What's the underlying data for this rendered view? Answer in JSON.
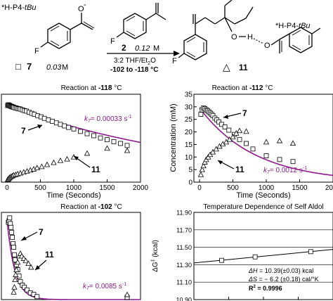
{
  "scheme": {
    "enolate_base": "*H-P4-",
    "enolate_base_tbu": "tBu",
    "enolate_minus": "-",
    "enolate_F": "F",
    "enolate_number": "7",
    "enolate_conc": "0.03",
    "enolate_conc_unit": "M",
    "ketone_F": "F",
    "ketone_number": "2",
    "ketone_conc": "0.12",
    "ketone_conc_unit": "M",
    "solvent_ratio": "3:2 THF/Et",
    "solvent_sub": "2",
    "solvent_tail": "O",
    "temp_range": "-102 to -118 °C",
    "product_base": "*H-P4-",
    "product_base_tbu": "tBu",
    "product_O1": "O",
    "product_H": "H",
    "product_O2": "O",
    "product_F": "F",
    "product_number": "11",
    "product_triangle": "△",
    "enolate_square": "□"
  },
  "chart_data": [
    {
      "type": "scatter",
      "title_prefix": "Reaction at ",
      "title_temp": "-118",
      "title_unit": " °C",
      "xlabel": "Time (Seconds)",
      "x_ticks": [
        "0",
        "500",
        "1000",
        "1500",
        "2000"
      ],
      "xlim": [
        0,
        2000
      ],
      "ylim": [
        0,
        35
      ],
      "k_label": "k",
      "k_sub": "7",
      "k_value": "= 0.00033 s",
      "k_exp": "-1",
      "label_7": "7",
      "label_11": "11",
      "series": [
        {
          "marker": "square",
          "x": [
            10,
            20,
            30,
            40,
            50,
            60,
            70,
            80,
            90,
            100,
            120,
            140,
            160,
            180,
            200,
            230,
            260,
            290,
            330,
            370,
            410,
            460,
            510,
            560,
            620,
            680,
            740,
            800,
            860,
            920,
            1000,
            1100,
            1200,
            1300,
            1400,
            1500,
            1600,
            1700,
            1800
          ],
          "y": [
            30.5,
            30.8,
            30.6,
            30.5,
            30.3,
            30.2,
            30.1,
            30,
            29.9,
            29.8,
            29.6,
            29.5,
            29.3,
            29.2,
            29.1,
            28.8,
            28.5,
            28.3,
            27.8,
            27.4,
            27,
            26.4,
            26,
            25.4,
            24.8,
            24.2,
            23.6,
            23,
            22.4,
            21.8,
            21.2,
            20.2,
            19.3,
            18.5,
            17.6,
            16.9,
            16.1,
            15.4,
            14.6
          ]
        },
        {
          "marker": "triangle",
          "x": [
            10,
            20,
            30,
            40,
            60,
            80,
            100,
            130,
            160,
            200,
            250,
            300,
            350,
            400,
            450,
            520,
            600,
            700,
            800,
            900,
            1000,
            1200,
            1500,
            1800
          ],
          "y": [
            1,
            1.3,
            1.6,
            1.9,
            2.2,
            2.5,
            2.8,
            3,
            3.3,
            3.6,
            4,
            4.4,
            4.8,
            5.2,
            5.7,
            6.2,
            7,
            7.8,
            8.6,
            9.2,
            10,
            11.5,
            13.5,
            12.6
          ]
        },
        {
          "marker": "fit",
          "k": 0.00033,
          "c0": 30.6
        }
      ]
    },
    {
      "type": "scatter",
      "title_prefix": "Reaction at ",
      "title_temp": "-112",
      "title_unit": " °C",
      "xlabel": "Time (Seconds)",
      "ylabel": "Concentration (mM)",
      "x_ticks": [
        "0",
        "500",
        "1000",
        "1500",
        "2000"
      ],
      "y_ticks": [
        "0",
        "5",
        "10",
        "15",
        "20",
        "25",
        "30",
        "35"
      ],
      "xlim": [
        0,
        2000
      ],
      "ylim": [
        0,
        35
      ],
      "k_label": "k",
      "k_sub": "7",
      "k_value": "= 0.0012 s",
      "k_exp": "-1",
      "label_7": "7",
      "label_11": "11",
      "series": [
        {
          "marker": "square",
          "x": [
            20,
            40,
            60,
            80,
            100,
            120,
            140,
            160,
            180,
            200,
            230,
            260,
            290,
            330,
            380,
            440,
            520,
            600,
            700,
            800,
            1000,
            1200,
            1400
          ],
          "y": [
            27,
            28.8,
            29.5,
            29.3,
            28.8,
            28.5,
            28,
            27.5,
            27,
            26.5,
            25.5,
            24.8,
            24,
            23,
            22,
            20.7,
            19,
            17,
            15.4,
            13.2,
            10.5,
            9,
            8.2
          ]
        },
        {
          "marker": "triangle",
          "x": [
            20,
            40,
            60,
            80,
            100,
            130,
            160,
            200,
            250,
            300,
            350,
            400,
            450,
            500,
            550,
            600,
            700,
            1000,
            1200,
            1400
          ],
          "y": [
            3,
            5,
            6.5,
            8,
            9,
            10,
            11,
            12,
            13.2,
            14.3,
            15.2,
            16,
            17,
            18,
            19.5,
            20.5,
            20.2,
            16,
            16.5,
            15.5
          ]
        },
        {
          "marker": "fit",
          "k": 0.0012,
          "c0": 29.6
        }
      ]
    },
    {
      "type": "scatter",
      "title_prefix": "Reaction at ",
      "title_temp": "-102",
      "title_unit": " °C",
      "xlabel": "",
      "x_ticks": [],
      "xlim": [
        0,
        2000
      ],
      "ylim": [
        0,
        35
      ],
      "k_label": "k",
      "k_sub": "7",
      "k_value": "= 0.0085 s",
      "k_exp": "-1",
      "label_7": "7",
      "label_11": "11",
      "series": [
        {
          "marker": "square",
          "x": [
            20,
            30,
            40,
            50,
            60,
            70,
            80,
            90,
            100,
            110,
            120,
            140,
            160,
            180,
            200,
            230,
            260,
            300,
            350,
            400,
            450,
            1800
          ],
          "y": [
            31,
            31.6,
            32.8,
            30.5,
            29,
            27,
            25,
            22.5,
            21,
            18,
            16,
            14,
            12,
            9.5,
            7.2,
            5.8,
            5,
            3.9,
            2.7,
            2.1,
            1.2,
            0.9
          ]
        },
        {
          "marker": "triangle",
          "x": [
            100,
            110,
            120,
            130,
            140,
            160,
            180,
            200,
            220,
            250,
            280,
            320,
            360,
            1800
          ],
          "y": [
            3,
            5,
            8,
            10,
            12,
            15,
            17.5,
            18.5,
            17.5,
            16.5,
            15.6,
            14.5,
            13,
            2
          ]
        },
        {
          "marker": "fit",
          "k": 0.0085,
          "c0": 32
        }
      ]
    },
    {
      "type": "line",
      "title": "Temperature Dependence of Self Aldol",
      "ylabel_prefix": "ΔG",
      "ylabel_suffix": " (kcal)",
      "y_ticks": [
        "10.90",
        "11.10",
        "11.30",
        "11.50",
        "11.70",
        "11.90"
      ],
      "ylim": [
        10.9,
        11.9
      ],
      "x_points": [
        155,
        161,
        171
      ],
      "xlim": [
        150,
        175
      ],
      "series": [
        {
          "marker": "square",
          "x": [
            155,
            161,
            171
          ],
          "y": [
            11.35,
            11.39,
            11.45
          ]
        }
      ],
      "dH_label": "ΔH",
      "dH_value": " = 10.39(±0.03) kcal",
      "dS_label": "ΔS",
      "dS_value": " = − 6.2 (±0.18) cal/°K",
      "r2_label": "R",
      "r2_exp": "2",
      "r2_value": " = 0.9996"
    }
  ],
  "colors": {
    "fit_line": "#8b1a8b",
    "k_text": "#8b1a8b",
    "axis": "#000000"
  }
}
